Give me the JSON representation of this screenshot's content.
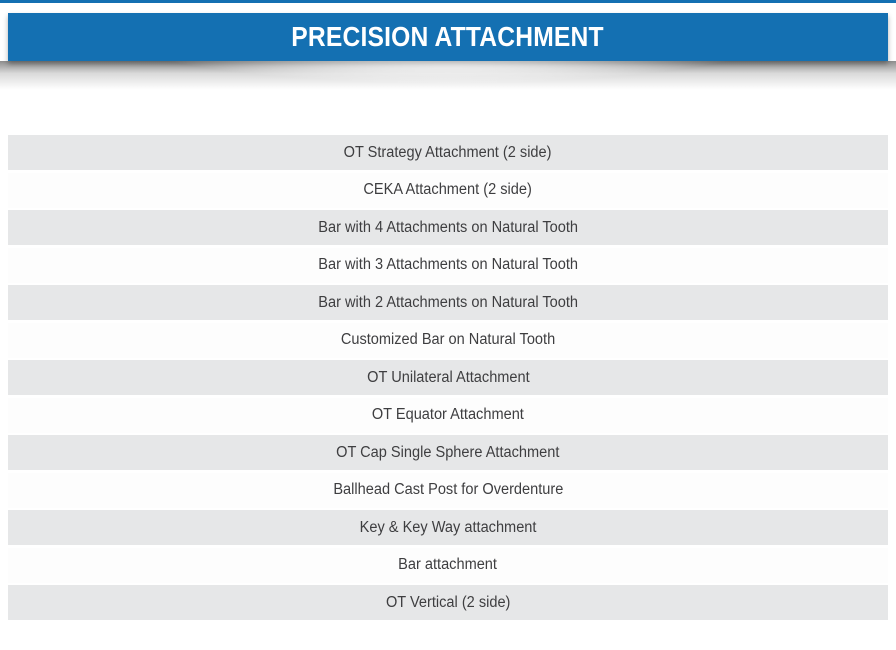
{
  "header": {
    "title": "PRECISION ATTACHMENT"
  },
  "list": {
    "items": [
      {
        "label": "OT Strategy Attachment (2 side)"
      },
      {
        "label": "CEKA Attachment (2 side)"
      },
      {
        "label": "Bar with 4 Attachments on Natural Tooth"
      },
      {
        "label": "Bar with 3 Attachments on Natural Tooth"
      },
      {
        "label": "Bar with 2 Attachments on Natural Tooth"
      },
      {
        "label": "Customized Bar on Natural Tooth"
      },
      {
        "label": "OT Unilateral Attachment"
      },
      {
        "label": "OT Equator Attachment"
      },
      {
        "label": "OT Cap Single Sphere Attachment"
      },
      {
        "label": "Ballhead Cast Post for Overdenture"
      },
      {
        "label": "Key & Key Way attachment"
      },
      {
        "label": "Bar attachment"
      },
      {
        "label": "OT Vertical (2 side)"
      }
    ]
  },
  "colors": {
    "banner_blue": "#1470b2",
    "row_gray": "#e6e7e8",
    "row_white": "#fdfdfd",
    "text_dark": "#3e3e40"
  }
}
